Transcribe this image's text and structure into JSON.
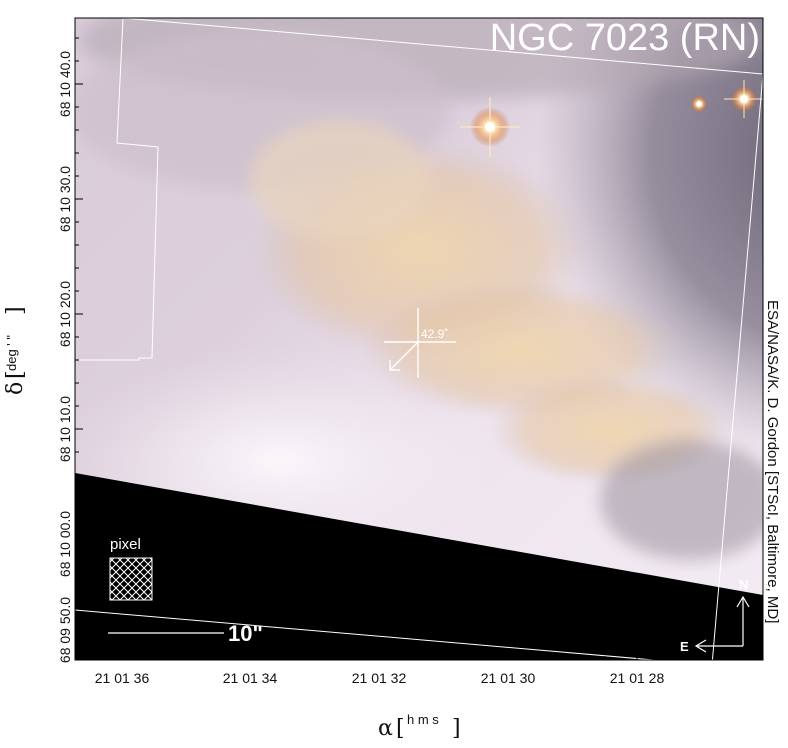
{
  "title": "NGC 7023 (RN)",
  "credit": "ESA/NASA/K. D. Gordon [STScI, Baltimore, MD]",
  "y_axis": {
    "symbol": "δ",
    "unit": "deg ' \"",
    "ticks": [
      "68 10 40.0",
      "68 10 30.0",
      "68 10 20.0",
      "68 10 10.0",
      "68 10 00.0",
      "68 09 50.0"
    ]
  },
  "x_axis": {
    "symbol": "α",
    "unit": "h m s",
    "ticks": [
      "21 01 36",
      "21 01 34",
      "21 01 32",
      "21 01 30",
      "21 01 28"
    ]
  },
  "annotations": {
    "position_angle": "42.9˚",
    "pixel_label": "pixel",
    "scale_bar_label": "10\"",
    "compass_north": "N",
    "compass_east": "E"
  },
  "colors": {
    "nebula_light": "#ece2ec",
    "nebula_warm": "#e9cfa8",
    "nebula_dark": "#6e6778",
    "mask": "#000000",
    "star": "#ffd79a"
  }
}
